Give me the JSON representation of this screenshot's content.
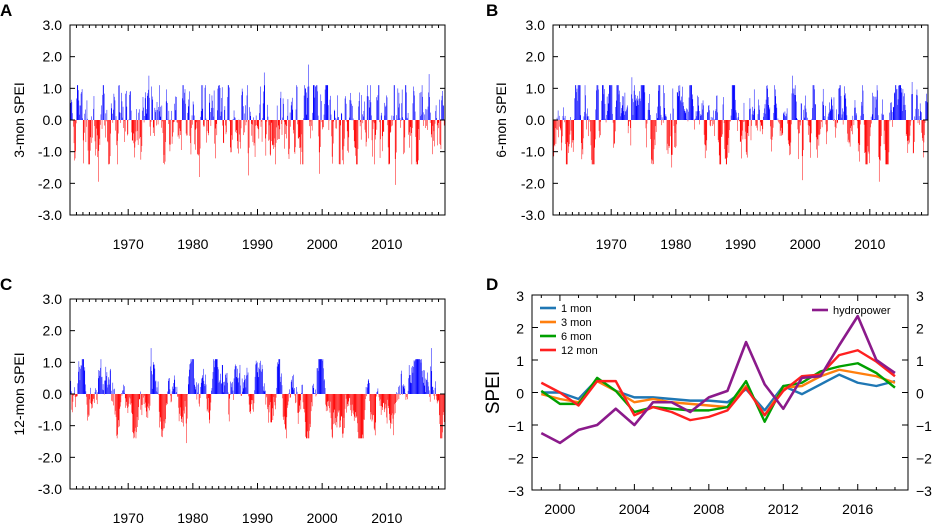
{
  "chart_data": [
    {
      "id": "A",
      "type": "bar",
      "panel_label": "A",
      "ylabel": "3-mon SPEI",
      "ylim": [
        -3.0,
        3.0
      ],
      "yticks": [
        3.0,
        2.0,
        1.0,
        0.0,
        -1.0,
        -2.0,
        -3.0
      ],
      "ytick_labels": [
        "3.0",
        "2.0",
        "1.0",
        "0.0",
        "-1.0",
        "-2.0",
        "-3.0"
      ],
      "xlim": [
        1961,
        2019
      ],
      "xticks": [
        1970,
        1980,
        1990,
        2000,
        2010
      ],
      "xtick_labels": [
        "1970",
        "1980",
        "1990",
        "2000",
        "2010"
      ],
      "positive_color": "#0000ff",
      "negative_color": "#ff0000",
      "timescale_months": 3,
      "seed": 11,
      "extremes": [
        {
          "year": 1965.3,
          "value": -1.95
        },
        {
          "year": 1973.2,
          "value": 1.4
        },
        {
          "year": 1981.0,
          "value": -1.8
        },
        {
          "year": 1988.6,
          "value": -1.75
        },
        {
          "year": 1991.0,
          "value": 1.5
        },
        {
          "year": 1997.8,
          "value": 1.75
        },
        {
          "year": 1999.6,
          "value": -1.7
        },
        {
          "year": 2011.3,
          "value": -2.05
        },
        {
          "year": 2016.5,
          "value": 1.45
        }
      ]
    },
    {
      "id": "B",
      "type": "bar",
      "panel_label": "B",
      "ylabel": "6-mon SPEI",
      "ylim": [
        -3.0,
        3.0
      ],
      "yticks": [
        3.0,
        2.0,
        1.0,
        0.0,
        -1.0,
        -2.0,
        -3.0
      ],
      "ytick_labels": [
        "3.0",
        "2.0",
        "1.0",
        "0.0",
        "-1.0",
        "-2.0",
        "-3.0"
      ],
      "xlim": [
        1961,
        2019
      ],
      "xticks": [
        1970,
        1980,
        1990,
        2000,
        2010
      ],
      "xtick_labels": [
        "1970",
        "1980",
        "1990",
        "2000",
        "2010"
      ],
      "positive_color": "#0000ff",
      "negative_color": "#ff0000",
      "timescale_months": 6,
      "seed": 23,
      "extremes": [
        {
          "year": 1973.2,
          "value": 1.35
        },
        {
          "year": 1979.3,
          "value": -1.5
        },
        {
          "year": 1998.0,
          "value": 1.4
        },
        {
          "year": 1999.6,
          "value": -1.9
        },
        {
          "year": 2011.4,
          "value": -1.95
        },
        {
          "year": 2016.5,
          "value": 1.2
        }
      ]
    },
    {
      "id": "C",
      "type": "bar",
      "panel_label": "C",
      "ylabel": "12-mon SPEI",
      "ylim": [
        -3.0,
        3.0
      ],
      "yticks": [
        3.0,
        2.0,
        1.0,
        0.0,
        -1.0,
        -2.0,
        -3.0
      ],
      "ytick_labels": [
        "3.0",
        "2.0",
        "1.0",
        "0.0",
        "-1.0",
        "-2.0",
        "-3.0"
      ],
      "xlim": [
        1961,
        2019
      ],
      "xticks": [
        1970,
        1980,
        1990,
        2000,
        2010
      ],
      "xtick_labels": [
        "1970",
        "1980",
        "1990",
        "2000",
        "2010"
      ],
      "positive_color": "#0000ff",
      "negative_color": "#ff0000",
      "timescale_months": 12,
      "seed": 37,
      "extremes": [
        {
          "year": 1973.5,
          "value": 1.45
        },
        {
          "year": 1979.0,
          "value": -1.55
        },
        {
          "year": 2011.0,
          "value": -1.3
        },
        {
          "year": 2016.8,
          "value": 1.45
        }
      ]
    },
    {
      "id": "D",
      "type": "line",
      "panel_label": "D",
      "ylabel": "SPEI",
      "ylim": [
        -3,
        3
      ],
      "yticks": [
        3,
        2,
        1,
        0,
        -1,
        -2,
        -3
      ],
      "ytick_labels_left": [
        "3",
        "2",
        "1",
        "0",
        "−1",
        "−2",
        "−3"
      ],
      "ytick_labels_right": [
        "3",
        "2",
        "1",
        "0",
        "−1",
        "−2",
        "−3"
      ],
      "xlim": [
        1998.5,
        2018.7
      ],
      "xticks": [
        2000,
        2004,
        2008,
        2012,
        2016
      ],
      "xtick_labels": [
        "2000",
        "2004",
        "2008",
        "2012",
        "2016"
      ],
      "x": [
        1999,
        2000,
        2001,
        2002,
        2003,
        2004,
        2005,
        2006,
        2007,
        2008,
        2009,
        2010,
        2011,
        2012,
        2013,
        2014,
        2015,
        2016,
        2017,
        2018
      ],
      "series": [
        {
          "name": "1 mon",
          "color": "#1f77b4",
          "values": [
            0.0,
            0.0,
            -0.2,
            0.4,
            0.05,
            -0.15,
            -0.15,
            -0.2,
            -0.25,
            -0.25,
            -0.3,
            0.1,
            -0.55,
            0.2,
            -0.05,
            0.25,
            0.55,
            0.3,
            0.2,
            0.35
          ]
        },
        {
          "name": "3 mon",
          "color": "#ff7f0e",
          "values": [
            -0.05,
            -0.2,
            -0.3,
            0.35,
            0.05,
            -0.3,
            -0.2,
            -0.3,
            -0.35,
            -0.4,
            -0.45,
            0.2,
            -0.7,
            0.15,
            0.2,
            0.5,
            0.7,
            0.6,
            0.5,
            0.3
          ]
        },
        {
          "name": "6 mon",
          "color": "#00a000",
          "values": [
            0.05,
            -0.35,
            -0.35,
            0.45,
            0.05,
            -0.6,
            -0.45,
            -0.5,
            -0.55,
            -0.55,
            -0.45,
            0.35,
            -0.9,
            0.2,
            0.3,
            0.65,
            0.8,
            0.9,
            0.6,
            0.15
          ]
        },
        {
          "name": "12 mon",
          "color": "#ff2020",
          "values": [
            0.3,
            0.0,
            -0.4,
            0.35,
            0.35,
            -0.7,
            -0.45,
            -0.6,
            -0.85,
            -0.75,
            -0.55,
            0.15,
            -0.7,
            0.05,
            0.5,
            0.55,
            1.15,
            1.3,
            0.95,
            0.5
          ]
        },
        {
          "name": "hydropower",
          "color": "#8b1a8b",
          "values": [
            -1.25,
            -1.55,
            -1.15,
            -1.0,
            -0.5,
            -1.0,
            -0.3,
            -0.3,
            -0.6,
            -0.15,
            0.05,
            1.55,
            0.25,
            -0.5,
            0.45,
            0.5,
            1.45,
            2.35,
            1.0,
            0.6
          ]
        }
      ],
      "legend_left": [
        "1 mon",
        "3 mon",
        "6 mon",
        "12 mon"
      ],
      "legend_right": [
        "hydropower"
      ]
    }
  ]
}
